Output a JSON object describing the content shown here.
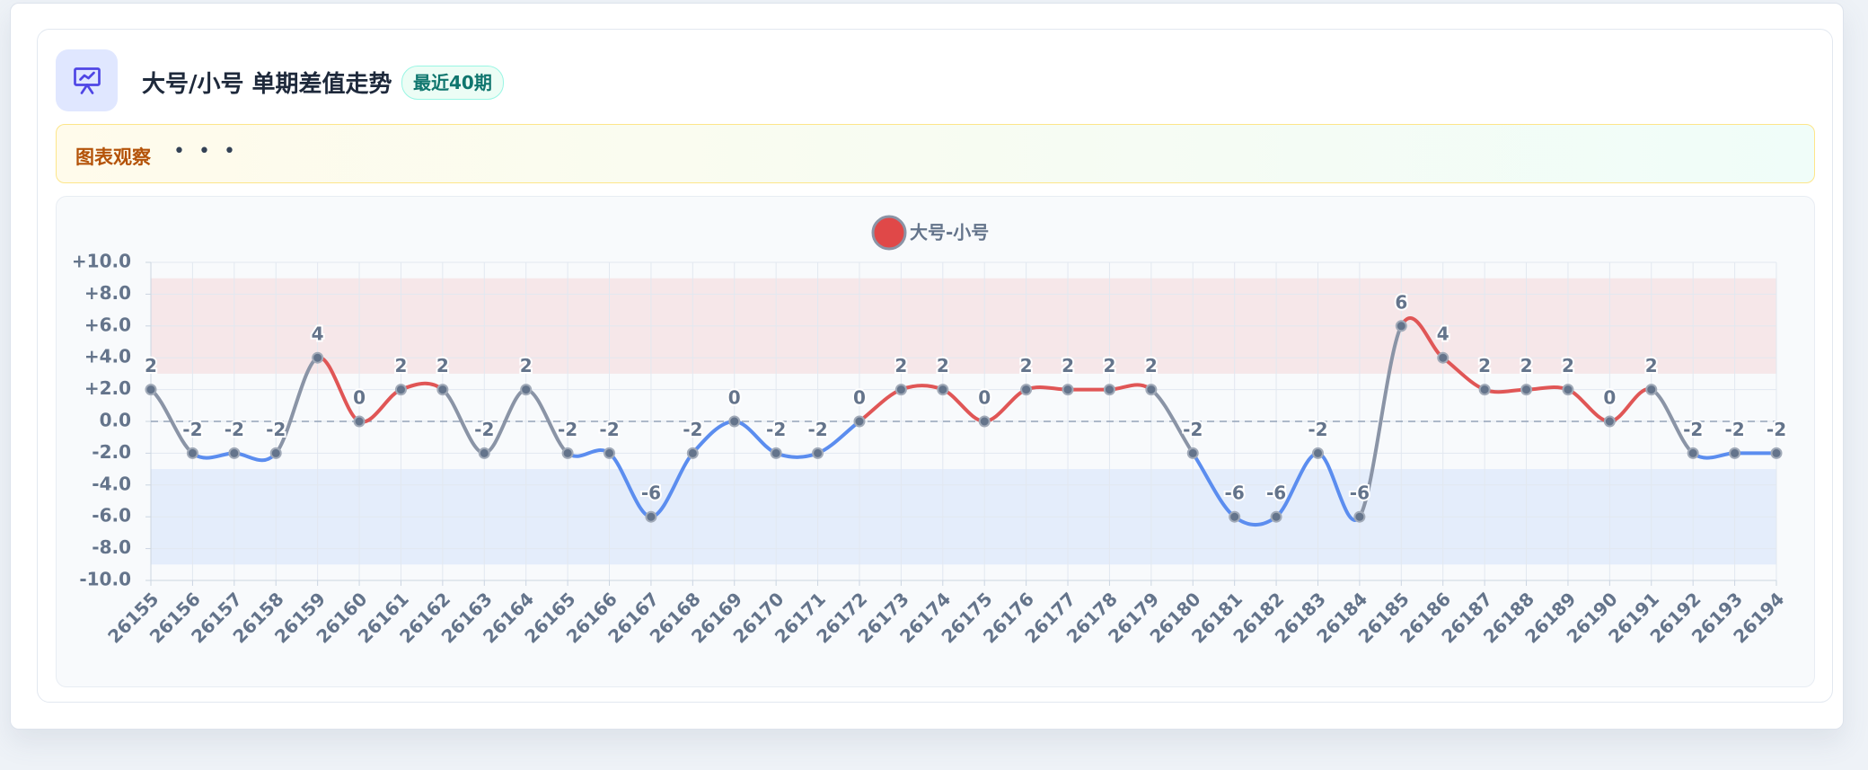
{
  "header": {
    "title": "大号/小号 单期差值走势",
    "badge": "最近40期"
  },
  "insight": {
    "label": "图表观察",
    "text": "• • •"
  },
  "chart_data": {
    "type": "line",
    "categories": [
      "26155",
      "26156",
      "26157",
      "26158",
      "26159",
      "26160",
      "26161",
      "26162",
      "26163",
      "26164",
      "26165",
      "26166",
      "26167",
      "26168",
      "26169",
      "26170",
      "26171",
      "26172",
      "26173",
      "26174",
      "26175",
      "26176",
      "26177",
      "26178",
      "26179",
      "26180",
      "26181",
      "26182",
      "26183",
      "26184",
      "26185",
      "26186",
      "26187",
      "26188",
      "26189",
      "26190",
      "26191",
      "26192",
      "26193",
      "26194"
    ],
    "series": [
      {
        "name": "大号-小号",
        "color": "#e04848",
        "values": [
          2,
          -2,
          -2,
          -2,
          4,
          0,
          2,
          2,
          -2,
          2,
          -2,
          -2,
          -6,
          -2,
          0,
          -2,
          -2,
          0,
          2,
          2,
          0,
          2,
          2,
          2,
          2,
          -2,
          -6,
          -6,
          -2,
          -6,
          6,
          4,
          2,
          2,
          2,
          0,
          2,
          -2,
          -2,
          -2
        ]
      }
    ],
    "ylim": [
      -10,
      10
    ],
    "yticks": [
      {
        "value": -10,
        "label": "-10.0"
      },
      {
        "value": -8,
        "label": "-8.0"
      },
      {
        "value": -6,
        "label": "-6.0"
      },
      {
        "value": -4,
        "label": "-4.0"
      },
      {
        "value": -2,
        "label": "-2.0"
      },
      {
        "value": 0,
        "label": "0.0"
      },
      {
        "value": 2,
        "label": "+2.0"
      },
      {
        "value": 4,
        "label": "+4.0"
      },
      {
        "value": 6,
        "label": "+6.0"
      },
      {
        "value": 8,
        "label": "+8.0"
      },
      {
        "value": 10,
        "label": "+10.0"
      }
    ],
    "grid": true,
    "bands": [
      {
        "from": 3,
        "to": 9,
        "color": "rgba(239,68,68,0.10)"
      },
      {
        "from": -3,
        "to": -9,
        "color": "rgba(59,130,246,0.10)"
      }
    ],
    "baseline": 0,
    "segment_colors": {
      "up": "#e05656",
      "down": "#5b8def",
      "cross": "#8a94a6"
    }
  }
}
